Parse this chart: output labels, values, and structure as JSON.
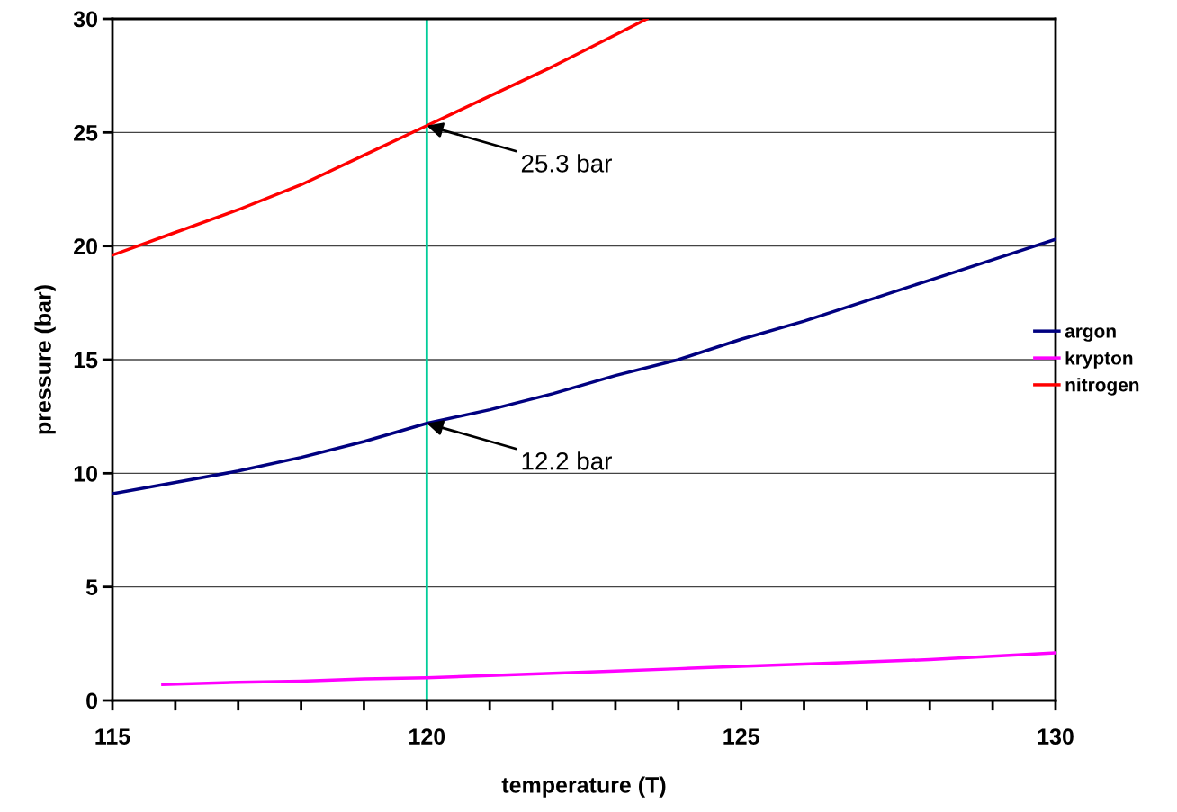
{
  "chart_data": {
    "type": "line",
    "xlabel": "temperature (T)",
    "ylabel": "pressure (bar)",
    "xlim": [
      115,
      130
    ],
    "xticks": [
      115,
      120,
      125,
      130
    ],
    "ylim": [
      0,
      30
    ],
    "yticks": [
      0,
      5,
      10,
      15,
      20,
      25,
      30
    ],
    "grid": "y",
    "legend": "right",
    "line_style": "solid",
    "marker": "none",
    "series": [
      {
        "name": "argon",
        "color": "#000080",
        "x": [
          115,
          116,
          117,
          118,
          119,
          120,
          121,
          122,
          123,
          124,
          125,
          126,
          127,
          128,
          129,
          130
        ],
        "values": [
          9.1,
          9.6,
          10.1,
          10.7,
          11.4,
          12.2,
          12.8,
          13.5,
          14.3,
          15.0,
          15.9,
          16.7,
          17.6,
          18.5,
          19.4,
          20.3
        ]
      },
      {
        "name": "krypton",
        "color": "#ff00ff",
        "x": [
          115.8,
          117,
          118,
          119,
          120,
          121,
          122,
          123,
          124,
          125,
          126,
          127,
          128,
          129,
          130
        ],
        "values": [
          0.7,
          0.8,
          0.85,
          0.95,
          1.0,
          1.1,
          1.2,
          1.3,
          1.4,
          1.5,
          1.6,
          1.7,
          1.8,
          1.95,
          2.1
        ]
      },
      {
        "name": "nitrogen",
        "color": "#ff0000",
        "x": [
          115,
          116,
          117,
          118,
          119,
          120,
          121,
          122,
          123,
          123.5
        ],
        "values": [
          19.6,
          20.6,
          21.6,
          22.7,
          24.0,
          25.3,
          26.6,
          27.9,
          29.3,
          30.0
        ]
      }
    ],
    "ref_lines": [
      {
        "axis": "x",
        "value": 120,
        "color": "#00cc99"
      }
    ],
    "annotations": [
      {
        "text": "25.3 bar",
        "x": 120,
        "y": 25.3
      },
      {
        "text": "12.2 bar",
        "x": 120,
        "y": 12.2
      }
    ]
  }
}
